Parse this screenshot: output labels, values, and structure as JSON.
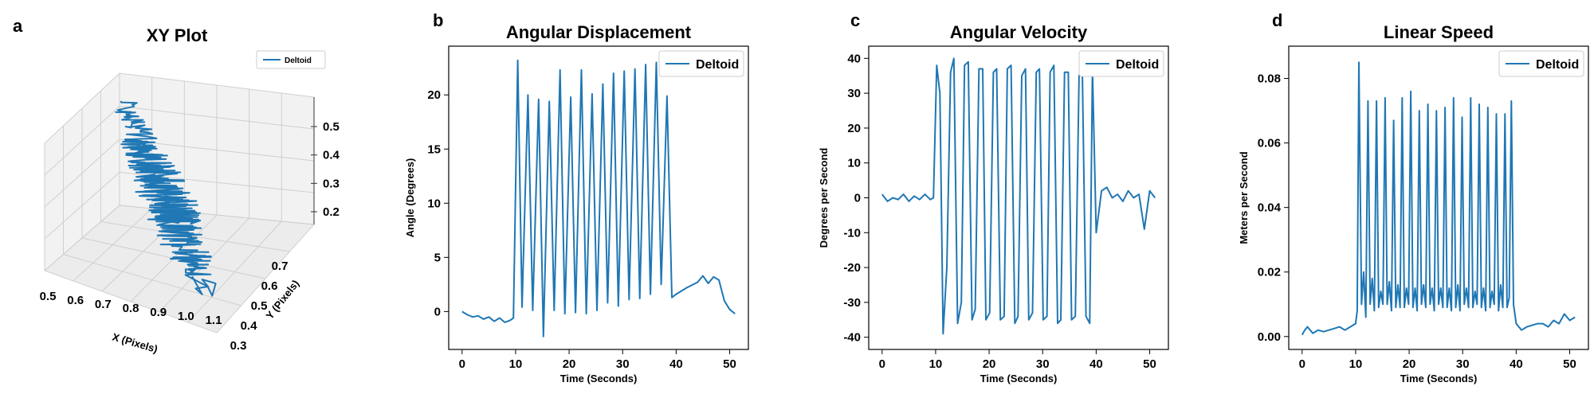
{
  "colors": {
    "series": "#1f77b4"
  },
  "panels": {
    "a": {
      "letter": "a",
      "title": "XY Plot",
      "legend": "Deltoid"
    },
    "b": {
      "letter": "b"
    },
    "c": {
      "letter": "c"
    },
    "d": {
      "letter": "d"
    }
  },
  "chart_data": [
    {
      "id": "a",
      "type": "line",
      "projection": "3d",
      "title": "XY Plot",
      "xlabel": "X (Pixels)",
      "ylabel": "Y (Pixels)",
      "zlabel": "",
      "xlim": [
        0.5,
        1.1
      ],
      "ylim": [
        0.3,
        0.7
      ],
      "zlim": [
        0.15,
        0.55
      ],
      "xticks": [
        "0.5",
        "0.6",
        "0.7",
        "0.8",
        "0.9",
        "1.0",
        "1.1"
      ],
      "yticks": [
        "0.3",
        "0.4",
        "0.5",
        "0.6",
        "0.7"
      ],
      "zticks": [
        "0.2",
        "0.3",
        "0.4",
        "0.5"
      ],
      "legend": "top-right",
      "series": [
        {
          "name": "Deltoid",
          "trend_start": [
            0.55,
            0.75,
            0.52
          ],
          "trend_end": [
            1.0,
            0.35,
            0.2
          ]
        }
      ]
    },
    {
      "id": "b",
      "type": "line",
      "title": "Angular Displacement",
      "xlabel": "Time (Seconds)",
      "ylabel": "Angle (Degrees)",
      "xlim": [
        -2.5,
        53.5
      ],
      "ylim": [
        -3.5,
        24.5
      ],
      "xticks": [
        0,
        10,
        20,
        30,
        40,
        50
      ],
      "yticks": [
        0,
        5,
        10,
        15,
        20
      ],
      "legend": "top-right",
      "series": [
        {
          "name": "Deltoid",
          "x": [
            0,
            1,
            2,
            3,
            4,
            5,
            6,
            7,
            8,
            9,
            9.6,
            10.4,
            11.2,
            12.3,
            13.2,
            14.3,
            15.2,
            16.3,
            17.2,
            18.3,
            19.2,
            20.3,
            21.2,
            22.3,
            23.2,
            24.3,
            25.2,
            26.3,
            27.2,
            28.3,
            29.2,
            30.3,
            31.2,
            32.3,
            33.2,
            34.3,
            35.2,
            36.3,
            37.2,
            38.3,
            39.2,
            40,
            42,
            44,
            45,
            46,
            47,
            48,
            49,
            50,
            51
          ],
          "y": [
            0,
            -0.3,
            -0.5,
            -0.4,
            -0.7,
            -0.5,
            -0.9,
            -0.6,
            -1.0,
            -0.8,
            -0.6,
            23.2,
            0.4,
            20.0,
            0.1,
            19.6,
            -2.3,
            19.4,
            0.1,
            22.3,
            -0.2,
            19.8,
            -0.1,
            22.3,
            -0.2,
            20.1,
            0.1,
            21.0,
            0.8,
            22.0,
            0.5,
            22.2,
            1.1,
            22.4,
            1.2,
            22.8,
            1.6,
            23.0,
            2.5,
            19.9,
            1.3,
            1.6,
            2.2,
            2.7,
            3.3,
            2.6,
            3.2,
            2.9,
            1.0,
            0.2,
            -0.2
          ]
        }
      ]
    },
    {
      "id": "c",
      "type": "line",
      "title": "Angular Velocity",
      "xlabel": "Time (Seconds)",
      "ylabel": "Degrees per Second",
      "xlim": [
        -2.5,
        53.5
      ],
      "ylim": [
        -43.5,
        43.5
      ],
      "xticks": [
        0,
        10,
        20,
        30,
        40,
        50
      ],
      "yticks": [
        -40,
        -30,
        -20,
        -10,
        0,
        10,
        20,
        30,
        40
      ],
      "legend": "top-right",
      "series": [
        {
          "name": "Deltoid",
          "x": [
            0,
            1,
            2,
            3,
            4,
            5,
            6,
            7,
            8,
            9,
            9.6,
            10.2,
            10.8,
            11.4,
            12.1,
            12.8,
            13.4,
            14.1,
            14.8,
            15.4,
            16.1,
            16.8,
            17.4,
            18.1,
            18.8,
            19.4,
            20.1,
            20.8,
            21.4,
            22.1,
            22.8,
            23.4,
            24.1,
            24.8,
            25.4,
            26.1,
            26.8,
            27.4,
            28.1,
            28.8,
            29.4,
            30.1,
            30.8,
            31.4,
            32.1,
            32.8,
            33.4,
            34.1,
            34.8,
            35.4,
            36.1,
            36.8,
            37.4,
            38.1,
            38.8,
            39.3,
            40,
            41,
            42,
            43,
            44,
            45,
            46,
            47,
            48,
            49,
            50,
            51
          ],
          "y": [
            1,
            -1,
            0,
            -0.5,
            1,
            -1,
            0.5,
            -0.5,
            1,
            -0.5,
            0,
            38,
            30,
            -39,
            -20,
            36,
            40,
            -36,
            -30,
            38,
            39,
            -35,
            -32,
            37,
            37,
            -35,
            -33,
            36,
            37,
            -35,
            -34,
            37,
            38,
            -36,
            -34,
            35,
            37,
            -35,
            -33,
            36,
            37,
            -35,
            -34,
            36,
            38,
            -36,
            -35,
            36,
            36,
            -35,
            -34,
            35,
            38,
            -34,
            -36,
            37,
            -10,
            2,
            3,
            0,
            1,
            -1,
            2,
            0,
            1,
            -9,
            2,
            0
          ]
        }
      ]
    },
    {
      "id": "d",
      "type": "line",
      "title": "Linear Speed",
      "xlabel": "Time (Seconds)",
      "ylabel": "Meters per Second",
      "xlim": [
        -2.5,
        53.5
      ],
      "ylim": [
        -0.004,
        0.09
      ],
      "xticks": [
        0,
        10,
        20,
        30,
        40,
        50
      ],
      "yticks": [
        "0.00",
        "0.02",
        "0.04",
        "0.06",
        "0.08"
      ],
      "legend": "top-right",
      "series": [
        {
          "name": "Deltoid",
          "x": [
            0,
            0.5,
            1,
            1.5,
            2,
            3,
            4,
            5,
            6,
            7,
            8,
            9,
            10,
            10.3,
            10.6,
            11.1,
            11.5,
            11.9,
            12.3,
            12.7,
            13.1,
            13.5,
            13.9,
            14.3,
            14.7,
            15.1,
            15.5,
            15.9,
            16.3,
            16.7,
            17.1,
            17.5,
            17.9,
            18.3,
            18.7,
            19.1,
            19.5,
            19.9,
            20.3,
            20.7,
            21.1,
            21.5,
            21.9,
            22.3,
            22.7,
            23.1,
            23.5,
            23.9,
            24.3,
            24.7,
            25.1,
            25.5,
            25.9,
            26.3,
            26.7,
            27.1,
            27.5,
            27.9,
            28.3,
            28.7,
            29.1,
            29.5,
            29.9,
            30.3,
            30.7,
            31.1,
            31.5,
            31.9,
            32.3,
            32.7,
            33.1,
            33.5,
            33.9,
            34.3,
            34.7,
            35.1,
            35.5,
            35.9,
            36.3,
            36.7,
            37.1,
            37.5,
            37.9,
            38.3,
            38.7,
            39.1,
            39.5,
            40,
            41,
            42,
            43,
            44,
            45,
            46,
            47,
            48,
            49,
            50,
            51
          ],
          "y": [
            0.0005,
            0.002,
            0.003,
            0.002,
            0.001,
            0.002,
            0.0015,
            0.002,
            0.0025,
            0.003,
            0.002,
            0.003,
            0.004,
            0.008,
            0.085,
            0.01,
            0.02,
            0.006,
            0.073,
            0.01,
            0.018,
            0.008,
            0.073,
            0.009,
            0.014,
            0.01,
            0.074,
            0.01,
            0.017,
            0.008,
            0.067,
            0.009,
            0.016,
            0.009,
            0.074,
            0.009,
            0.015,
            0.01,
            0.076,
            0.009,
            0.015,
            0.008,
            0.07,
            0.01,
            0.016,
            0.009,
            0.072,
            0.01,
            0.015,
            0.008,
            0.07,
            0.01,
            0.015,
            0.009,
            0.071,
            0.009,
            0.015,
            0.008,
            0.074,
            0.009,
            0.016,
            0.008,
            0.068,
            0.01,
            0.015,
            0.009,
            0.074,
            0.009,
            0.014,
            0.01,
            0.072,
            0.009,
            0.015,
            0.008,
            0.071,
            0.009,
            0.014,
            0.01,
            0.069,
            0.008,
            0.016,
            0.009,
            0.069,
            0.009,
            0.012,
            0.073,
            0.01,
            0.004,
            0.002,
            0.003,
            0.0035,
            0.004,
            0.004,
            0.003,
            0.005,
            0.004,
            0.007,
            0.005,
            0.006
          ]
        }
      ]
    }
  ]
}
